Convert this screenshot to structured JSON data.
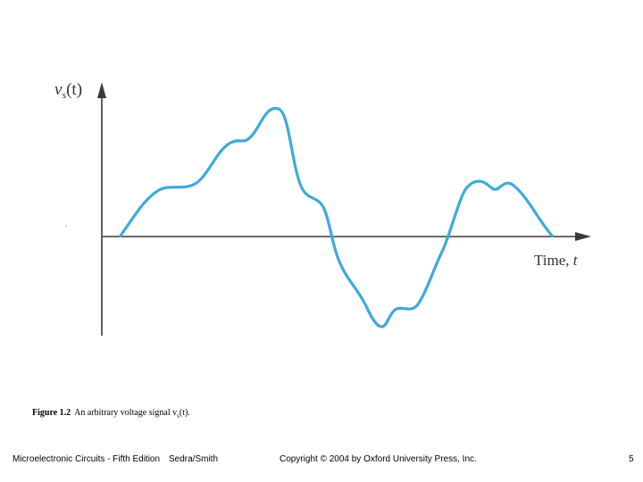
{
  "figure": {
    "y_axis_label": "v",
    "y_axis_subscript": "s",
    "y_axis_arg": "(t)",
    "x_axis_label": "Time, ",
    "x_axis_var": "t",
    "curve_color": "#3fa9dc"
  },
  "caption": {
    "number": "Figure 1.2",
    "text": "An arbitrary voltage signal v",
    "subscript": "s",
    "suffix": "(t)."
  },
  "footer": {
    "book": "Microelectronic Circuits - Fifth Edition",
    "authors": "Sedra/Smith",
    "copyright": "Copyright © 2004 by Oxford University Press, Inc.",
    "page": "5"
  }
}
